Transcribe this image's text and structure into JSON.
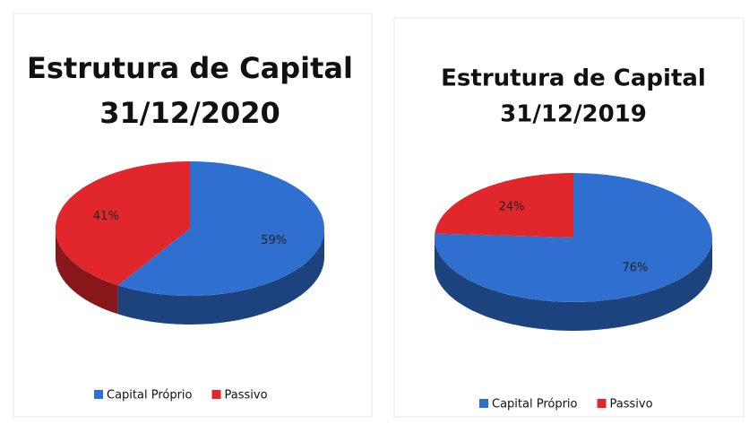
{
  "chart_data": [
    {
      "type": "pie",
      "title": "Estrutura de Capital",
      "subtitle": "31/12/2020",
      "categories": [
        "Capital Próprio",
        "Passivo"
      ],
      "values": [
        59,
        41
      ],
      "value_labels": [
        "59%",
        "41%"
      ],
      "colors": [
        "#2e6fd0",
        "#e1262c"
      ]
    },
    {
      "type": "pie",
      "title": "Estrutura de Capital",
      "subtitle": "31/12/2019",
      "categories": [
        "Capital Próprio",
        "Passivo"
      ],
      "values": [
        76,
        24
      ],
      "value_labels": [
        "76%",
        "24%"
      ],
      "colors": [
        "#2e6fd0",
        "#e1262c"
      ]
    }
  ]
}
